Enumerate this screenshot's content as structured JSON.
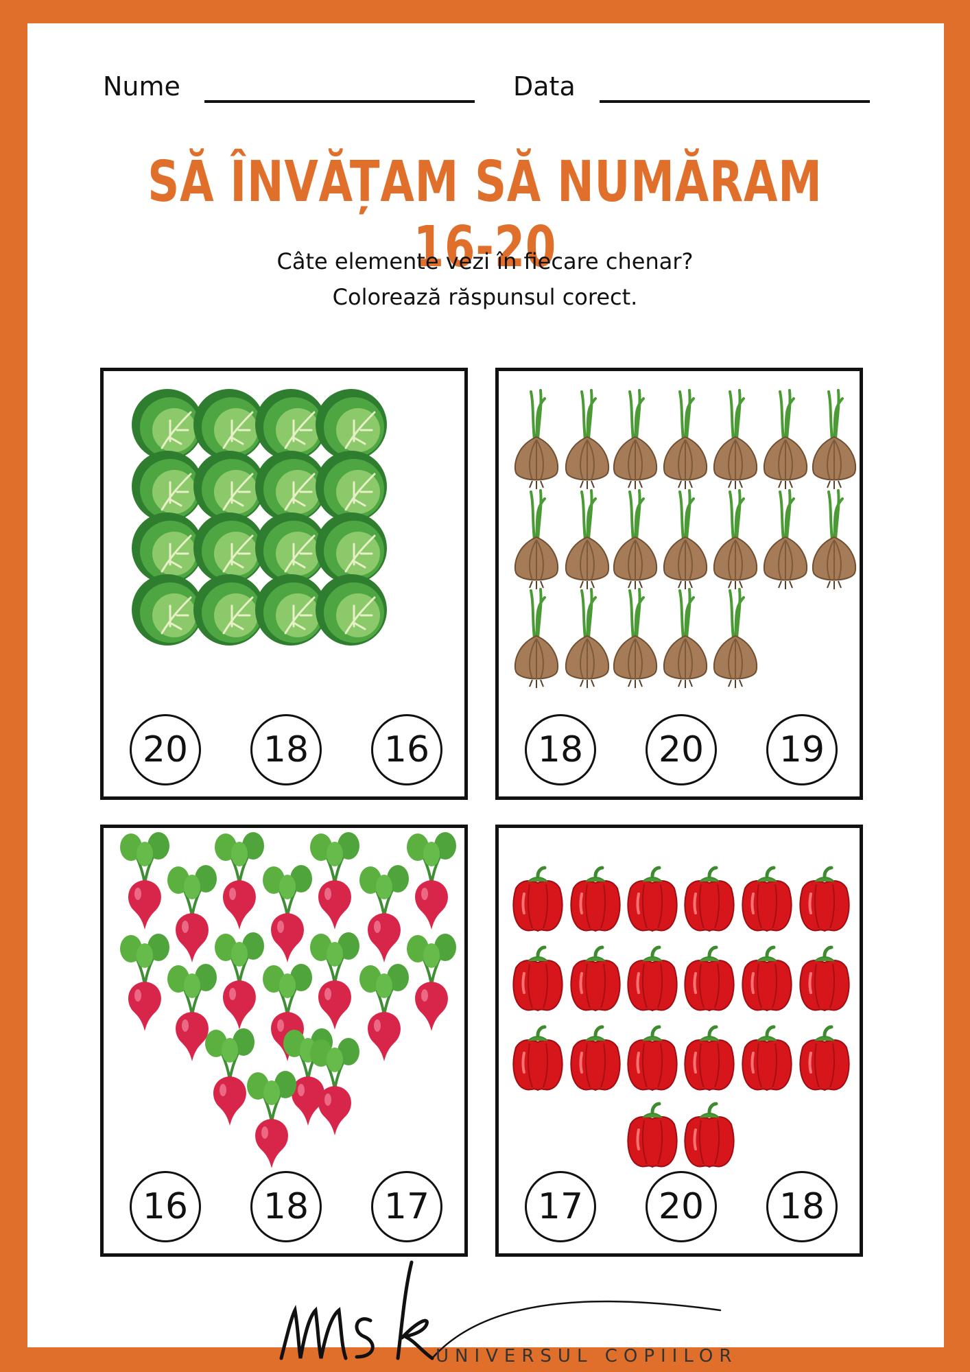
{
  "header": {
    "name_label": "Nume",
    "date_label": "Data",
    "title": "SĂ ÎNVĂȚAM SĂ NUMĂRAM 16-20",
    "instruction_line1": "Câte elemente vezi în fiecare chenar?",
    "instruction_line2": "Colorează răspunsul corect."
  },
  "boxes": [
    {
      "item": "cabbage",
      "count": 16,
      "answers": [
        "20",
        "18",
        "16"
      ]
    },
    {
      "item": "onion",
      "count": 19,
      "answers": [
        "18",
        "20",
        "19"
      ]
    },
    {
      "item": "radish",
      "count": 18,
      "answers": [
        "16",
        "18",
        "17"
      ]
    },
    {
      "item": "bell-pepper",
      "count": 20,
      "answers": [
        "17",
        "20",
        "18"
      ]
    }
  ],
  "logo": {
    "mark": "msk",
    "tagline": "UNIVERSUL COPIILOR"
  },
  "colors": {
    "accent": "#e06f2c",
    "cabbage": "#3f9a3a",
    "onion": "#a57c57",
    "radish": "#d8254a",
    "pepper": "#d7161b"
  }
}
